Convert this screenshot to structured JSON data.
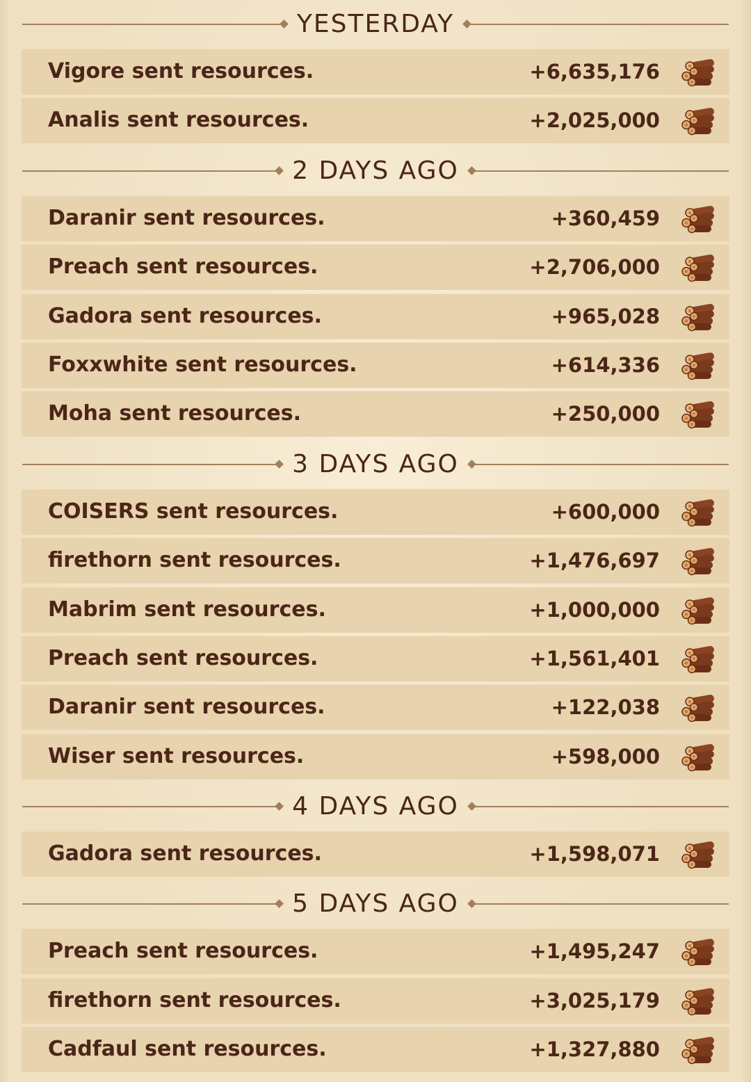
{
  "icon_name": "wood-logs-icon",
  "colors": {
    "background": "#efe0c2",
    "row": "#e7d3ad",
    "text": "#4b2618",
    "divider": "#a27f5c",
    "log_bark": "#7a3a1e",
    "log_end": "#e0a86a"
  },
  "groups": [
    {
      "title": "YESTERDAY",
      "entries": [
        {
          "label": "Vigore sent resources.",
          "amount": "+6,635,176"
        },
        {
          "label": "Analis sent resources.",
          "amount": "+2,025,000"
        }
      ]
    },
    {
      "title": "2 DAYS AGO",
      "entries": [
        {
          "label": "Daranir sent resources.",
          "amount": "+360,459"
        },
        {
          "label": "Preach sent resources.",
          "amount": "+2,706,000"
        },
        {
          "label": "Gadora sent resources.",
          "amount": "+965,028"
        },
        {
          "label": "Foxxwhite sent resources.",
          "amount": "+614,336"
        },
        {
          "label": "Moha sent resources.",
          "amount": "+250,000"
        }
      ]
    },
    {
      "title": "3 DAYS AGO",
      "entries": [
        {
          "label": "COISERS sent resources.",
          "amount": "+600,000"
        },
        {
          "label": "firethorn sent resources.",
          "amount": "+1,476,697"
        },
        {
          "label": "Mabrim sent resources.",
          "amount": "+1,000,000"
        },
        {
          "label": "Preach sent resources.",
          "amount": "+1,561,401"
        },
        {
          "label": "Daranir sent resources.",
          "amount": "+122,038"
        },
        {
          "label": "Wiser sent resources.",
          "amount": "+598,000"
        }
      ]
    },
    {
      "title": "4 DAYS AGO",
      "entries": [
        {
          "label": "Gadora sent resources.",
          "amount": "+1,598,071"
        }
      ]
    },
    {
      "title": "5 DAYS AGO",
      "entries": [
        {
          "label": "Preach sent resources.",
          "amount": "+1,495,247"
        },
        {
          "label": "firethorn sent resources.",
          "amount": "+3,025,179"
        },
        {
          "label": "Cadfaul sent resources.",
          "amount": "+1,327,880"
        }
      ]
    }
  ]
}
